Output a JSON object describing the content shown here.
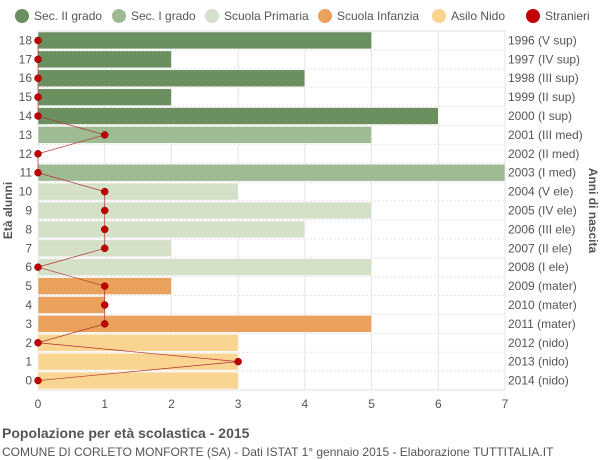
{
  "legend": [
    {
      "label": "Sec. II grado",
      "color": "#6b8f5e"
    },
    {
      "label": "Sec. I grado",
      "color": "#9fbb94"
    },
    {
      "label": "Scuola Primaria",
      "color": "#d4e0c8"
    },
    {
      "label": "Scuola Infanzia",
      "color": "#e9a15c"
    },
    {
      "label": "Asilo Nido",
      "color": "#fad591"
    },
    {
      "label": "Stranieri",
      "color": "#c00000"
    }
  ],
  "footer": {
    "title": "Popolazione per età scolastica - 2015",
    "subtitle": "COMUNE DI CORLETO MONFORTE (SA) - Dati ISTAT 1° gennaio 2015 - Elaborazione TUTTITALIA.IT"
  },
  "chart_data": {
    "type": "bar",
    "orientation": "horizontal",
    "ylabel": "Età alunni",
    "ylabel_right": "Anni di nascita",
    "xlim": [
      0,
      7
    ],
    "x_ticks": [
      "0",
      "1",
      "2",
      "3",
      "4",
      "5",
      "6",
      "7"
    ],
    "grid": true,
    "legend_position": "top",
    "categories": [
      "18",
      "17",
      "16",
      "15",
      "14",
      "13",
      "12",
      "11",
      "10",
      "9",
      "8",
      "7",
      "6",
      "5",
      "4",
      "3",
      "2",
      "1",
      "0"
    ],
    "birth_years": [
      "1996 (V sup)",
      "1997 (IV sup)",
      "1998 (III sup)",
      "1999 (II sup)",
      "2000 (I sup)",
      "2001 (III med)",
      "2002 (II med)",
      "2003 (I med)",
      "2004 (V ele)",
      "2005 (IV ele)",
      "2006 (III ele)",
      "2007 (II ele)",
      "2008 (I ele)",
      "2009 (mater)",
      "2010 (mater)",
      "2011 (mater)",
      "2012 (nido)",
      "2013 (nido)",
      "2014 (nido)"
    ],
    "values": [
      5,
      2,
      4,
      2,
      6,
      5,
      0,
      7,
      3,
      5,
      4,
      2,
      5,
      2,
      1,
      5,
      3,
      3,
      3
    ],
    "groups": [
      "Sec. II grado",
      "Sec. II grado",
      "Sec. II grado",
      "Sec. II grado",
      "Sec. II grado",
      "Sec. I grado",
      "Sec. I grado",
      "Sec. I grado",
      "Scuola Primaria",
      "Scuola Primaria",
      "Scuola Primaria",
      "Scuola Primaria",
      "Scuola Primaria",
      "Scuola Infanzia",
      "Scuola Infanzia",
      "Scuola Infanzia",
      "Asilo Nido",
      "Asilo Nido",
      "Asilo Nido"
    ],
    "series": [
      {
        "name": "Stranieri",
        "type": "line",
        "values": [
          0,
          0,
          0,
          0,
          0,
          1,
          0,
          0,
          1,
          1,
          1,
          1,
          0,
          1,
          1,
          1,
          0,
          3,
          0
        ]
      }
    ]
  }
}
